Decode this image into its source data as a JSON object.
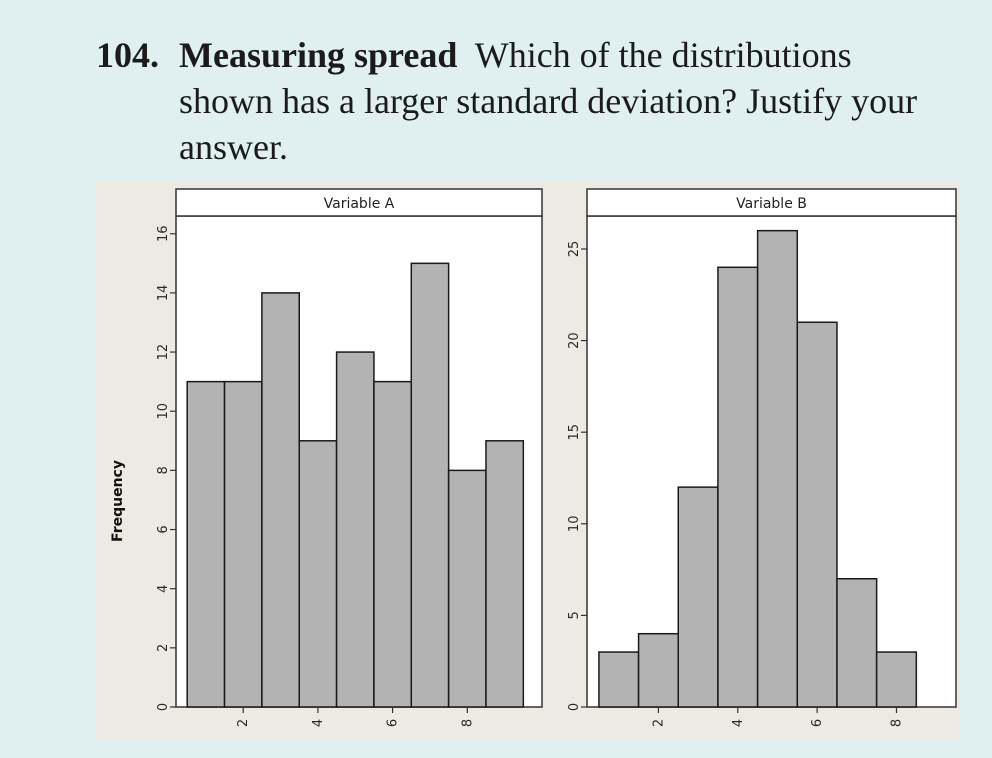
{
  "problem": {
    "number": "104.",
    "title": "Measuring spread",
    "text": "Which of the distributions shown has a larger standard deviation? Justify your answer."
  },
  "chart_data": [
    {
      "type": "bar",
      "title": "Variable A",
      "ylabel": "Frequency",
      "xlabel": "",
      "bin_edges": [
        0.5,
        1.5,
        2.5,
        3.5,
        4.5,
        5.5,
        6.5,
        7.5,
        8.5,
        9.5
      ],
      "values": [
        11,
        11,
        14,
        9,
        12,
        11,
        15,
        8,
        9
      ],
      "xticks": [
        2,
        4,
        6,
        8
      ],
      "yticks": [
        0,
        2,
        4,
        6,
        8,
        10,
        12,
        14,
        16
      ],
      "xlim": [
        0.2,
        10.0
      ],
      "ylim": [
        0,
        16.6
      ]
    },
    {
      "type": "bar",
      "title": "Variable B",
      "ylabel": "",
      "xlabel": "",
      "bin_edges": [
        0.5,
        1.5,
        2.5,
        3.5,
        4.5,
        5.5,
        6.5,
        7.5,
        8.5
      ],
      "values": [
        3,
        4,
        12,
        24,
        26,
        21,
        7,
        3
      ],
      "xticks": [
        2,
        4,
        6,
        8
      ],
      "yticks": [
        0,
        5,
        10,
        15,
        20,
        25
      ],
      "xlim": [
        0.2,
        9.5
      ],
      "ylim": [
        0,
        26.8
      ]
    }
  ],
  "colors": {
    "bar_fill": "#b3b3b3",
    "bar_stroke": "#1a1a1a",
    "panel_bg": "#ffffff",
    "figure_bg": "#ede9e3",
    "axis": "#333333"
  }
}
